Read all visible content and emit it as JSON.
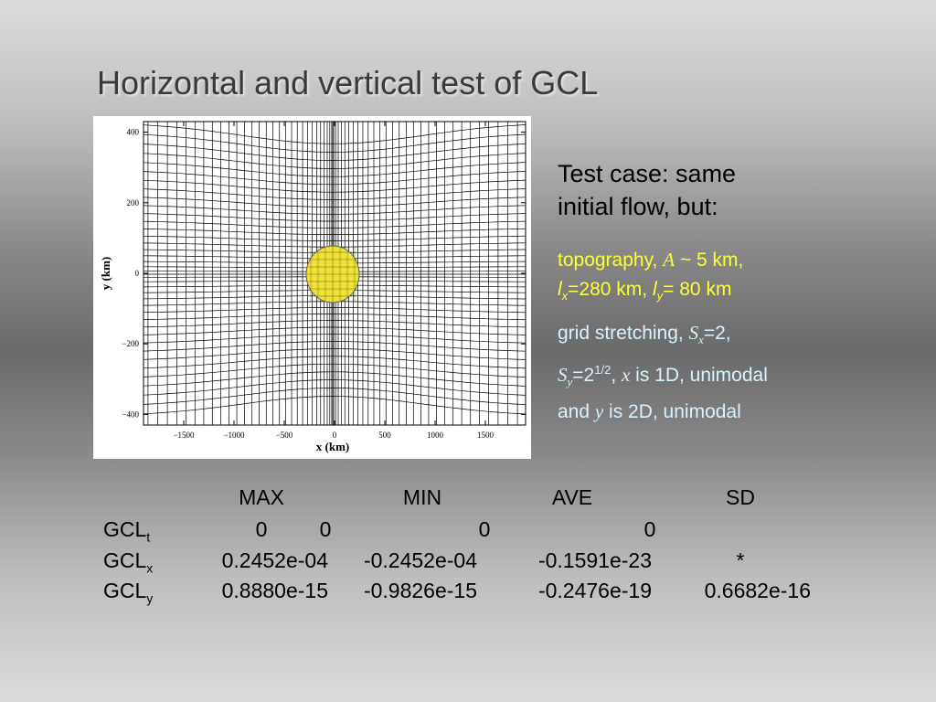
{
  "slide": {
    "title": "Horizontal and vertical test of GCL"
  },
  "figure": {
    "xlabel": "x (km)",
    "ylabel": "y (km)",
    "xticks": [
      "-1500",
      "-1000",
      "-500",
      "0",
      "500",
      "1000",
      "1500"
    ],
    "yticks": [
      "400",
      "200",
      "0",
      "-200",
      "-400"
    ],
    "bump_color": "#f5e52a"
  },
  "text": {
    "case_line1": "Test case: same",
    "case_line2": "initial flow, but:",
    "topo_1": "topography, ",
    "topo_A": "A",
    "topo_2": " ~ 5 km,",
    "topo_lx": "l",
    "topo_lx_sub": "x",
    "topo_3": "=280 km, ",
    "topo_ly": "l",
    "topo_ly_sub": "y",
    "topo_4": "= 80 km",
    "grid_1": "grid stretching, ",
    "grid_Sx": "S",
    "grid_Sx_sub": "x",
    "grid_2": "=2,",
    "grid_Sy": "S",
    "grid_Sy_sub": "y",
    "grid_3": "=2",
    "grid_sup": "1/2",
    "grid_4": ", ",
    "grid_x": "x",
    "grid_5": " is 1D, unimodal",
    "grid_6": "and ",
    "grid_y": "y",
    "grid_7": " is 2D, unimodal"
  },
  "table": {
    "headers": [
      "MAX",
      "MIN",
      "AVE",
      "SD"
    ],
    "rows": [
      {
        "label": "GCL",
        "sub": "t",
        "max": "0",
        "min": "0",
        "ave": "0",
        "sd": "0"
      },
      {
        "label": "GCL",
        "sub": "x",
        "max": "0.2452e-04",
        "min": "-0.2452e-04",
        "ave": "-0.1591e-23",
        "sd": "*"
      },
      {
        "label": "GCL",
        "sub": "y",
        "max": "0.8880e-15",
        "min": "-0.9826e-15",
        "ave": "-0.2476e-19",
        "sd": "0.6682e-16"
      }
    ]
  }
}
